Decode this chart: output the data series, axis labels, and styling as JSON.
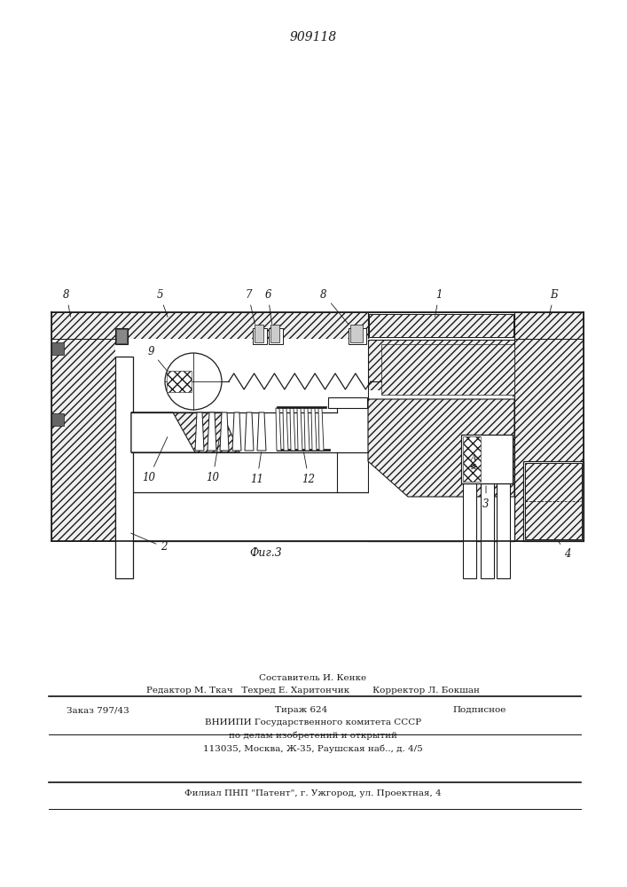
{
  "patent_number": "909118",
  "bg_color": "#ffffff",
  "line_color": "#1a1a1a",
  "footer_sestavitel": "Составитель И. Кенке",
  "footer_editor": "Редактор М. Ткач   Техред Е. Харитончик        Корректор Л. Бокшан",
  "footer_zakaz": "Заказ 797/43",
  "footer_tirazh": "Тираж 624",
  "footer_podpisnoe": "Подписное",
  "footer_vniip1": "ВНИИПИ Государственного комитета СССР",
  "footer_vniip2": "по делам изобретений и открытий",
  "footer_vniip3": "113035, Москва, Ж-35, Раушская наб.., д. 4/5",
  "footer_filial": "Филиал ПНП \"Патент\", г. Ужгород, ул. Проектная, 4",
  "fig_label": "Фиг.3"
}
